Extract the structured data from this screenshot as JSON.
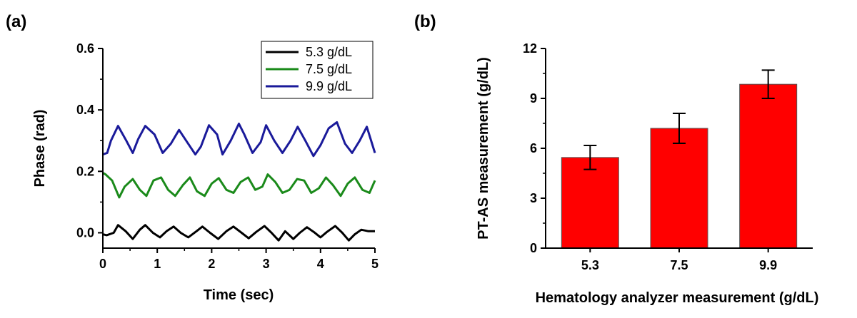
{
  "chart_data": [
    {
      "panel": "(a)",
      "type": "line",
      "title": "",
      "xlabel": "Time (sec)",
      "ylabel": "Phase (rad)",
      "xlim": [
        0,
        5
      ],
      "ylim": [
        -0.05,
        0.6
      ],
      "xticks": [
        0,
        1,
        2,
        3,
        4,
        5
      ],
      "yticks": [
        0.0,
        0.2,
        0.4,
        0.6
      ],
      "ytick_labels": [
        "0.0",
        "0.2",
        "0.4",
        "0.6"
      ],
      "legend_position": "top-right",
      "series": [
        {
          "name": "5.3 g/dL",
          "color": "#000000",
          "x": [
            0,
            0.07,
            0.2,
            0.28,
            0.42,
            0.55,
            0.68,
            0.78,
            0.92,
            1.05,
            1.17,
            1.3,
            1.43,
            1.57,
            1.72,
            1.83,
            1.97,
            2.12,
            2.27,
            2.4,
            2.55,
            2.68,
            2.82,
            2.97,
            3.1,
            3.23,
            3.35,
            3.5,
            3.62,
            3.75,
            3.88,
            4.0,
            4.12,
            4.27,
            4.4,
            4.52,
            4.63,
            4.75,
            4.88,
            5.0
          ],
          "y": [
            -0.005,
            -0.008,
            0.0,
            0.025,
            0.005,
            -0.02,
            0.01,
            0.025,
            0.0,
            -0.015,
            0.005,
            0.02,
            0.0,
            -0.015,
            0.005,
            0.02,
            0.0,
            -0.02,
            0.005,
            0.02,
            0.0,
            -0.018,
            0.003,
            0.022,
            0.0,
            -0.025,
            0.005,
            -0.02,
            0.0,
            0.018,
            0.002,
            -0.015,
            0.003,
            0.022,
            0.0,
            -0.025,
            -0.005,
            0.01,
            0.005,
            0.005
          ]
        },
        {
          "name": "7.5 g/dL",
          "color": "#1a8a1a",
          "x": [
            0,
            0.05,
            0.17,
            0.3,
            0.4,
            0.55,
            0.68,
            0.8,
            0.93,
            1.07,
            1.2,
            1.33,
            1.47,
            1.6,
            1.73,
            1.87,
            2.0,
            2.13,
            2.27,
            2.4,
            2.53,
            2.67,
            2.8,
            2.93,
            3.03,
            3.17,
            3.3,
            3.43,
            3.57,
            3.7,
            3.83,
            3.97,
            4.1,
            4.23,
            4.37,
            4.5,
            4.63,
            4.77,
            4.9,
            5.0
          ],
          "y": [
            0.195,
            0.19,
            0.17,
            0.115,
            0.15,
            0.175,
            0.14,
            0.12,
            0.17,
            0.18,
            0.14,
            0.12,
            0.155,
            0.18,
            0.135,
            0.12,
            0.16,
            0.178,
            0.14,
            0.13,
            0.165,
            0.18,
            0.14,
            0.15,
            0.19,
            0.165,
            0.13,
            0.14,
            0.175,
            0.17,
            0.13,
            0.145,
            0.18,
            0.155,
            0.12,
            0.16,
            0.18,
            0.14,
            0.13,
            0.17
          ]
        },
        {
          "name": "9.9 g/dL",
          "color": "#1a1a9a",
          "x": [
            0,
            0.08,
            0.15,
            0.28,
            0.43,
            0.55,
            0.65,
            0.78,
            0.95,
            1.1,
            1.25,
            1.4,
            1.55,
            1.7,
            1.8,
            1.95,
            2.1,
            2.2,
            2.35,
            2.5,
            2.6,
            2.75,
            2.9,
            3.0,
            3.15,
            3.3,
            3.45,
            3.58,
            3.72,
            3.87,
            4.0,
            4.15,
            4.3,
            4.45,
            4.58,
            4.72,
            4.85,
            5.0
          ],
          "y": [
            0.255,
            0.26,
            0.3,
            0.348,
            0.3,
            0.26,
            0.305,
            0.348,
            0.32,
            0.26,
            0.29,
            0.335,
            0.295,
            0.255,
            0.28,
            0.35,
            0.32,
            0.255,
            0.3,
            0.355,
            0.32,
            0.26,
            0.295,
            0.35,
            0.3,
            0.26,
            0.3,
            0.345,
            0.3,
            0.25,
            0.285,
            0.34,
            0.36,
            0.29,
            0.26,
            0.3,
            0.345,
            0.26
          ]
        }
      ]
    },
    {
      "panel": "(b)",
      "type": "bar",
      "title": "",
      "xlabel": "Hematology analyzer measurement (g/dL)",
      "ylabel": "PT-AS measurement (g/dL)",
      "categories": [
        "5.3",
        "7.5",
        "9.9"
      ],
      "values": [
        5.45,
        7.2,
        9.85
      ],
      "error": [
        0.72,
        0.9,
        0.85
      ],
      "ylim": [
        0,
        12
      ],
      "yticks": [
        0,
        3,
        6,
        9,
        12
      ],
      "bar_color": "#ff0000"
    }
  ]
}
